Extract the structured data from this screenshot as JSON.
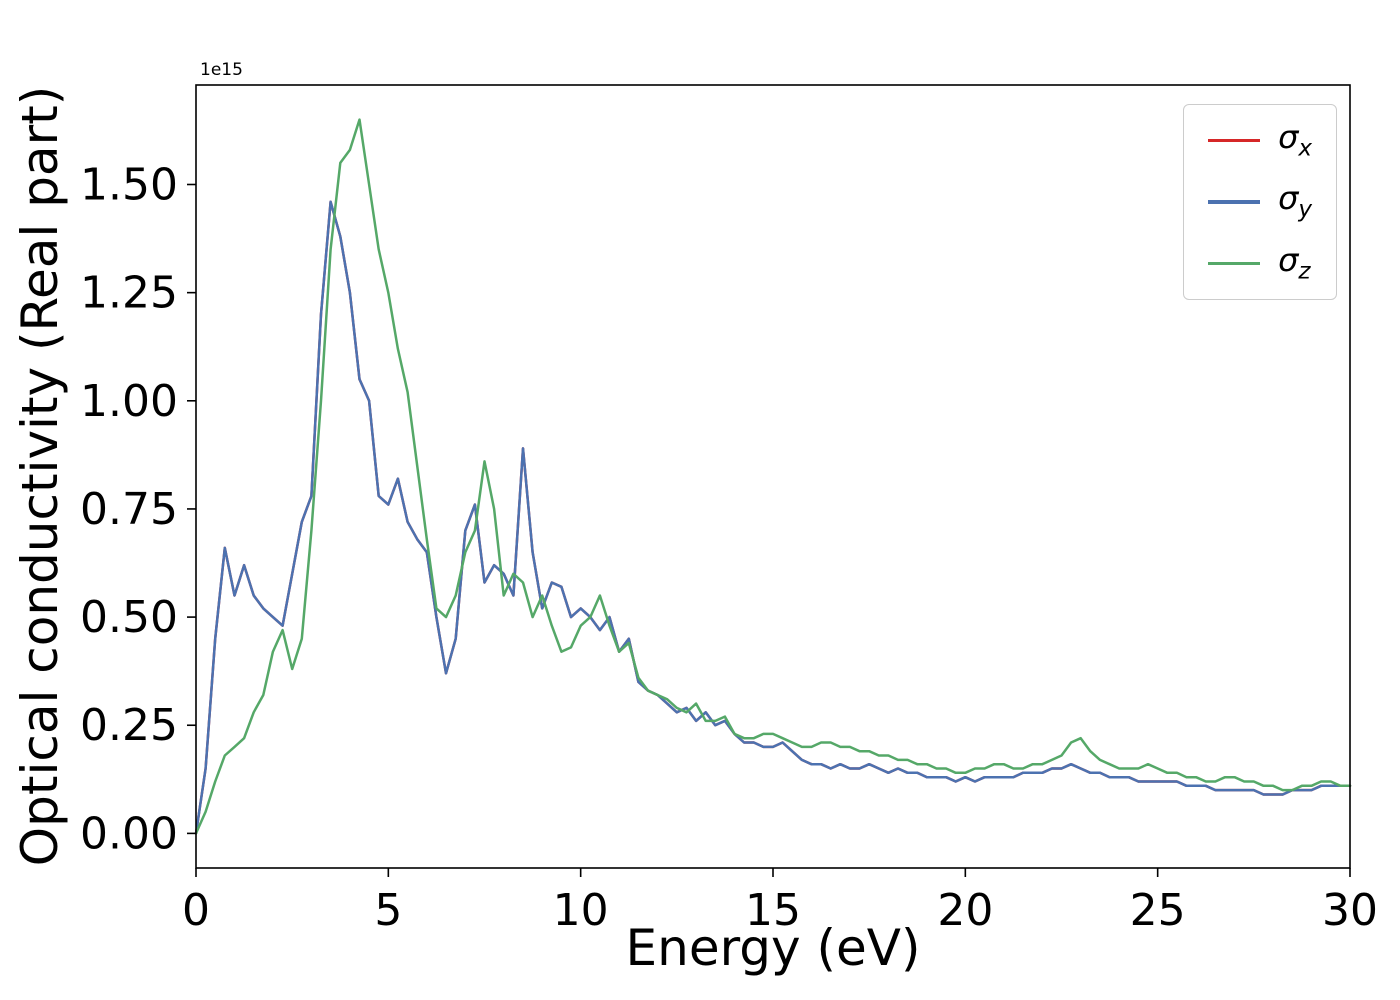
{
  "figure": {
    "background": "#ffffff"
  },
  "chart_data": {
    "type": "line",
    "title": "",
    "xlabel": "Energy (eV)",
    "ylabel": "Optical conductivity (Real part)",
    "offset_text": "1e15",
    "grid": false,
    "legend_position": "upper right",
    "xlim": [
      0,
      30
    ],
    "ylim": [
      -0.08,
      1.73
    ],
    "xticks": [
      0,
      5,
      10,
      15,
      20,
      25,
      30
    ],
    "yticks": [
      0,
      0.25,
      0.5,
      0.75,
      1.0,
      1.25,
      1.5
    ],
    "ytick_labels": [
      "0.00",
      "0.25",
      "0.50",
      "0.75",
      "1.00",
      "1.25",
      "1.50"
    ],
    "x_start": 0,
    "x_step": 0.25,
    "y_unit_scale": 1000000000000000.0,
    "legend": {
      "entries": [
        {
          "base": "σ",
          "sub": "x"
        },
        {
          "base": "σ",
          "sub": "y"
        },
        {
          "base": "σ",
          "sub": "z"
        }
      ]
    },
    "series": [
      {
        "id": "sigma_x",
        "label": "σ_x",
        "color": "#d62728",
        "values": [
          0.0,
          0.15,
          0.45,
          0.66,
          0.55,
          0.62,
          0.55,
          0.52,
          0.5,
          0.48,
          0.6,
          0.72,
          0.78,
          1.2,
          1.46,
          1.38,
          1.25,
          1.05,
          1.0,
          0.78,
          0.76,
          0.82,
          0.72,
          0.68,
          0.65,
          0.5,
          0.37,
          0.45,
          0.7,
          0.76,
          0.58,
          0.62,
          0.6,
          0.55,
          0.89,
          0.65,
          0.52,
          0.58,
          0.57,
          0.5,
          0.52,
          0.5,
          0.47,
          0.5,
          0.42,
          0.45,
          0.35,
          0.33,
          0.32,
          0.3,
          0.28,
          0.29,
          0.26,
          0.28,
          0.25,
          0.26,
          0.23,
          0.21,
          0.21,
          0.2,
          0.2,
          0.21,
          0.19,
          0.17,
          0.16,
          0.16,
          0.15,
          0.16,
          0.15,
          0.15,
          0.16,
          0.15,
          0.14,
          0.15,
          0.14,
          0.14,
          0.13,
          0.13,
          0.13,
          0.12,
          0.13,
          0.12,
          0.13,
          0.13,
          0.13,
          0.13,
          0.14,
          0.14,
          0.14,
          0.15,
          0.15,
          0.16,
          0.15,
          0.14,
          0.14,
          0.13,
          0.13,
          0.13,
          0.12,
          0.12,
          0.12,
          0.12,
          0.12,
          0.11,
          0.11,
          0.11,
          0.1,
          0.1,
          0.1,
          0.1,
          0.1,
          0.09,
          0.09,
          0.09,
          0.1,
          0.1,
          0.1,
          0.11,
          0.11,
          0.11,
          0.11
        ]
      },
      {
        "id": "sigma_y",
        "label": "σ_y",
        "color": "#4c72b0",
        "values": [
          0.0,
          0.15,
          0.45,
          0.66,
          0.55,
          0.62,
          0.55,
          0.52,
          0.5,
          0.48,
          0.6,
          0.72,
          0.78,
          1.2,
          1.46,
          1.38,
          1.25,
          1.05,
          1.0,
          0.78,
          0.76,
          0.82,
          0.72,
          0.68,
          0.65,
          0.5,
          0.37,
          0.45,
          0.7,
          0.76,
          0.58,
          0.62,
          0.6,
          0.55,
          0.89,
          0.65,
          0.52,
          0.58,
          0.57,
          0.5,
          0.52,
          0.5,
          0.47,
          0.5,
          0.42,
          0.45,
          0.35,
          0.33,
          0.32,
          0.3,
          0.28,
          0.29,
          0.26,
          0.28,
          0.25,
          0.26,
          0.23,
          0.21,
          0.21,
          0.2,
          0.2,
          0.21,
          0.19,
          0.17,
          0.16,
          0.16,
          0.15,
          0.16,
          0.15,
          0.15,
          0.16,
          0.15,
          0.14,
          0.15,
          0.14,
          0.14,
          0.13,
          0.13,
          0.13,
          0.12,
          0.13,
          0.12,
          0.13,
          0.13,
          0.13,
          0.13,
          0.14,
          0.14,
          0.14,
          0.15,
          0.15,
          0.16,
          0.15,
          0.14,
          0.14,
          0.13,
          0.13,
          0.13,
          0.12,
          0.12,
          0.12,
          0.12,
          0.12,
          0.11,
          0.11,
          0.11,
          0.1,
          0.1,
          0.1,
          0.1,
          0.1,
          0.09,
          0.09,
          0.09,
          0.1,
          0.1,
          0.1,
          0.11,
          0.11,
          0.11,
          0.11
        ]
      },
      {
        "id": "sigma_z",
        "label": "σ_z",
        "color": "#55a868",
        "values": [
          0.0,
          0.05,
          0.12,
          0.18,
          0.2,
          0.22,
          0.28,
          0.32,
          0.42,
          0.47,
          0.38,
          0.45,
          0.7,
          1.0,
          1.35,
          1.55,
          1.58,
          1.65,
          1.5,
          1.35,
          1.25,
          1.12,
          1.02,
          0.85,
          0.68,
          0.52,
          0.5,
          0.55,
          0.65,
          0.7,
          0.86,
          0.75,
          0.55,
          0.6,
          0.58,
          0.5,
          0.55,
          0.48,
          0.42,
          0.43,
          0.48,
          0.5,
          0.55,
          0.48,
          0.42,
          0.44,
          0.36,
          0.33,
          0.32,
          0.31,
          0.29,
          0.28,
          0.3,
          0.26,
          0.26,
          0.27,
          0.23,
          0.22,
          0.22,
          0.23,
          0.23,
          0.22,
          0.21,
          0.2,
          0.2,
          0.21,
          0.21,
          0.2,
          0.2,
          0.19,
          0.19,
          0.18,
          0.18,
          0.17,
          0.17,
          0.16,
          0.16,
          0.15,
          0.15,
          0.14,
          0.14,
          0.15,
          0.15,
          0.16,
          0.16,
          0.15,
          0.15,
          0.16,
          0.16,
          0.17,
          0.18,
          0.21,
          0.22,
          0.19,
          0.17,
          0.16,
          0.15,
          0.15,
          0.15,
          0.16,
          0.15,
          0.14,
          0.14,
          0.13,
          0.13,
          0.12,
          0.12,
          0.13,
          0.13,
          0.12,
          0.12,
          0.11,
          0.11,
          0.1,
          0.1,
          0.11,
          0.11,
          0.12,
          0.12,
          0.11,
          0.11
        ]
      }
    ]
  }
}
